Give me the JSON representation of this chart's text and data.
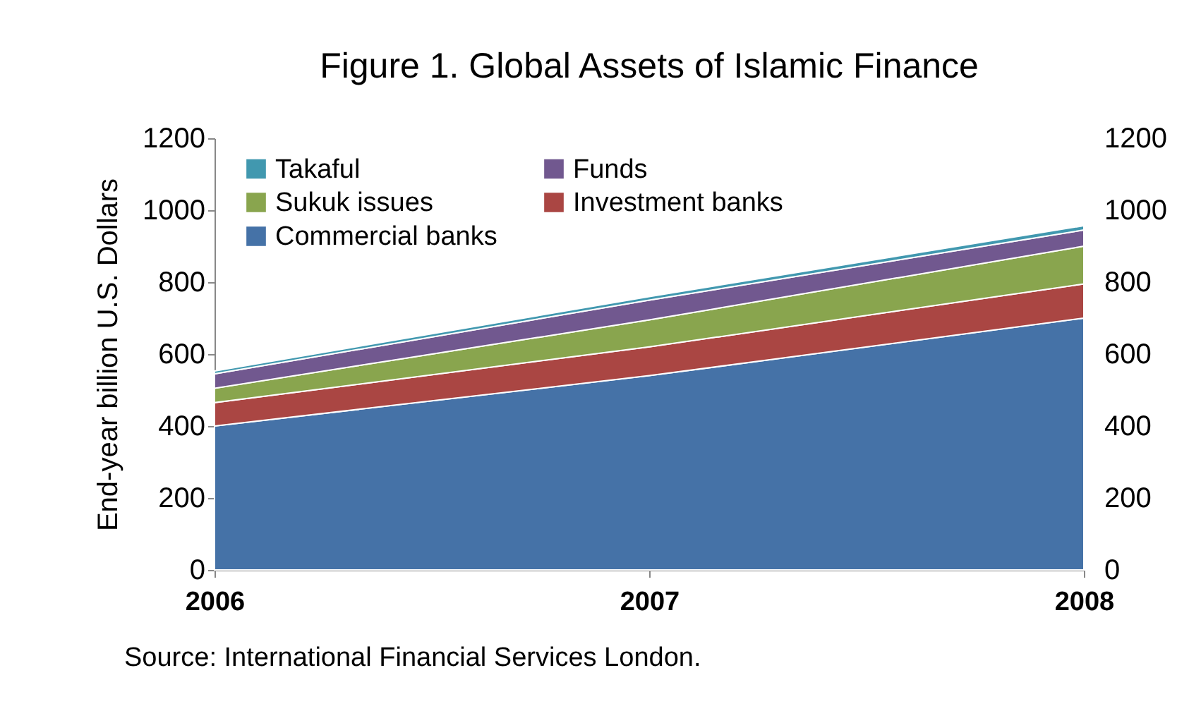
{
  "chart_data": {
    "type": "area",
    "stacked": true,
    "title": "Figure 1.  Global Assets of Islamic Finance",
    "ylabel": "End-year billion U.S. Dollars",
    "x": [
      2006,
      2007,
      2008
    ],
    "xlim": [
      2006,
      2008
    ],
    "xticks": [
      2006,
      2007,
      2008
    ],
    "ylim": [
      0,
      1200
    ],
    "yticks": [
      0,
      200,
      400,
      600,
      800,
      1000,
      1200
    ],
    "y2lim": [
      0,
      1200
    ],
    "y2ticks": [
      0,
      200,
      400,
      600,
      800,
      1000,
      1200
    ],
    "legend": "top left",
    "grid": false,
    "annotations": [
      "Source: International Financial Services London."
    ],
    "series": [
      {
        "name": "Commercial banks",
        "color": "#4572a7",
        "values": [
          400,
          540,
          700
        ]
      },
      {
        "name": "Investment banks",
        "color": "#aa4643",
        "values": [
          65,
          80,
          95
        ]
      },
      {
        "name": "Sukuk issues",
        "color": "#89a54e",
        "values": [
          40,
          75,
          105
        ]
      },
      {
        "name": "Funds",
        "color": "#71588f",
        "values": [
          40,
          55,
          45
        ]
      },
      {
        "name": "Takaful",
        "color": "#4198af",
        "values": [
          8,
          10,
          12
        ]
      }
    ]
  }
}
